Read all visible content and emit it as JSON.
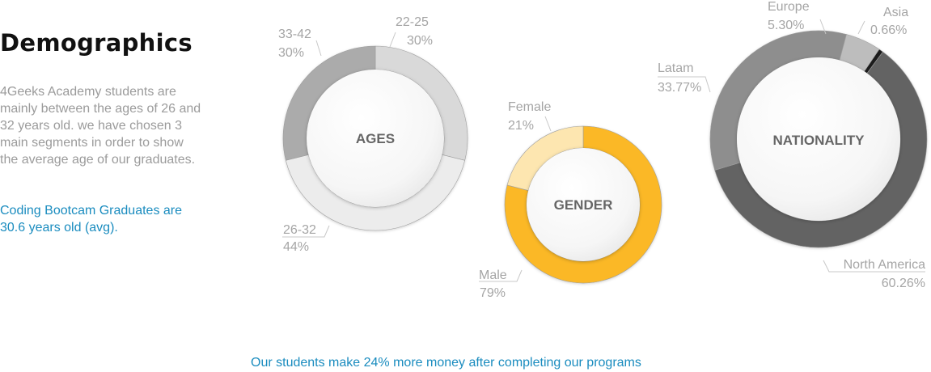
{
  "heading": "Demographics",
  "description": "4Geeks Academy students are mainly between the ages of 26 and 32 years old. we have chosen 3 main segments in order to show the average age of our graduates.",
  "highlight": "Coding Bootcam Graduates are 30.6 years old (avg).",
  "footer": "Our students make 24% more money after completing our programs",
  "chart_data": [
    {
      "type": "pie",
      "style": "donut",
      "center_label": "AGES",
      "slices": [
        {
          "label": "22-25",
          "value_text": "30%",
          "value": 30,
          "color": "#d9d9d9"
        },
        {
          "label": "26-32",
          "value_text": "44%",
          "value": 44,
          "color": "#ececec"
        },
        {
          "label": "33-42",
          "value_text": "30%",
          "value": 30,
          "color": "#ababab"
        }
      ]
    },
    {
      "type": "pie",
      "style": "donut",
      "center_label": "GENDER",
      "slices": [
        {
          "label": "Male",
          "value_text": "79%",
          "value": 79,
          "color": "#fbb826"
        },
        {
          "label": "Female",
          "value_text": "21%",
          "value": 21,
          "color": "#fde6b0"
        }
      ]
    },
    {
      "type": "pie",
      "style": "donut",
      "center_label": "NATIONALITY",
      "slices": [
        {
          "label": "Asia",
          "value_text": "0.66%",
          "value": 0.66,
          "color": "#1f1f1f"
        },
        {
          "label": "North America",
          "value_text": "60.26%",
          "value": 60.26,
          "color": "#646464"
        },
        {
          "label": "Latam",
          "value_text": "33.77%",
          "value": 33.77,
          "color": "#8e8e8e"
        },
        {
          "label": "Europe",
          "value_text": "5.30%",
          "value": 5.3,
          "color": "#bdbdbd"
        }
      ]
    }
  ]
}
